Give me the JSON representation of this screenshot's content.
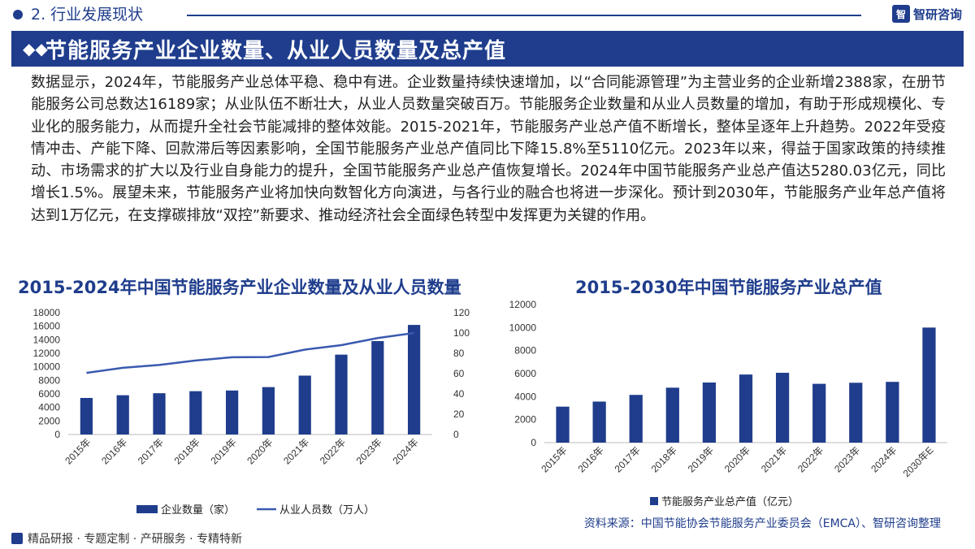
{
  "header": {
    "section_label": "2. 行业发展现状",
    "brand_mark": "智",
    "brand_name": "智研咨询",
    "banner_icon": "diamond-bullets",
    "banner_title": "节能服务产业企业数量、从业人员数量及总产值"
  },
  "body_text": "数据显示，2024年，节能服务产业总体平稳、稳中有进。企业数量持续快速增加，以“合同能源管理”为主营业务的企业新增2388家，在册节能服务公司总数达16189家；从业队伍不断壮大，从业人员数量突破百万。节能服务企业数量和从业人员数量的增加，有助于形成规模化、专业化的服务能力，从而提升全社会节能减排的整体效能。2015-2021年，节能服务产业总产值不断增长，整体呈逐年上升趋势。2022年受疫情冲击、产能下降、回款滞后等因素影响，全国节能服务产业总产值同比下降15.8%至5110亿元。2023年以来，得益于国家政策的持续推动、市场需求的扩大以及行业自身能力的提升，全国节能服务产业总产值恢复增长。2024年中国节能服务产业总产值达5280.03亿元，同比增长1.5%。展望未来，节能服务产业将加快向数智化方向演进，与各行业的融合也将进一步深化。预计到2030年，节能服务产业年总产值将达到1万亿元，在支撑碳排放“双控”新要求、推动经济社会全面绿色转型中发挥更为关键的作用。",
  "colors": {
    "primary": "#1f3d8c",
    "bar": "#1f3d8c",
    "line": "#3a5ab0"
  },
  "chart_data": [
    {
      "type": "bar+line",
      "title": "2015-2024年中国节能服务产业企业数量及从业人员数量",
      "categories": [
        "2015年",
        "2016年",
        "2017年",
        "2018年",
        "2019年",
        "2020年",
        "2021年",
        "2022年",
        "2023年",
        "2024年"
      ],
      "series": [
        {
          "name": "企业数量（家）",
          "type": "bar",
          "axis": "left",
          "values": [
            5400,
            5800,
            6100,
            6400,
            6500,
            7000,
            8700,
            11800,
            13800,
            16189
          ]
        },
        {
          "name": "从业人员数（万人）",
          "type": "line",
          "axis": "right",
          "values": [
            60.7,
            65.7,
            68.5,
            72.9,
            76.1,
            76.3,
            83.6,
            88.0,
            95.0,
            100.0
          ]
        }
      ],
      "ylim_left": [
        0,
        18000
      ],
      "yticks_left": [
        "0",
        "2000",
        "4000",
        "6000",
        "8000",
        "10000",
        "12000",
        "14000",
        "16000",
        "18000"
      ],
      "ylim_right": [
        0,
        120
      ],
      "yticks_right": [
        "0",
        "20",
        "40",
        "60",
        "80",
        "100",
        "120"
      ],
      "legend_position": "bottom"
    },
    {
      "type": "bar",
      "title": "2015-2030年中国节能服务产业总产值",
      "categories": [
        "2015年",
        "2016年",
        "2017年",
        "2018年",
        "2019年",
        "2020年",
        "2021年",
        "2022年",
        "2023年",
        "2024年",
        "2030年E"
      ],
      "series": [
        {
          "name": "节能服务产业总产值（亿元）",
          "values": [
            3127,
            3567,
            4148,
            4774,
            5223,
            5917,
            6069,
            5110,
            5202,
            5280.03,
            10000
          ]
        }
      ],
      "ylim": [
        0,
        12000
      ],
      "yticks": [
        "0",
        "2000",
        "4000",
        "6000",
        "8000",
        "10000",
        "12000"
      ],
      "legend_position": "bottom"
    }
  ],
  "footer": {
    "tags": "精品研报 · 专题定制 · 产研服务 · 专精特新",
    "source": "资料来源：中国节能协会节能服务产业委员会（EMCA）、智研咨询整理"
  }
}
